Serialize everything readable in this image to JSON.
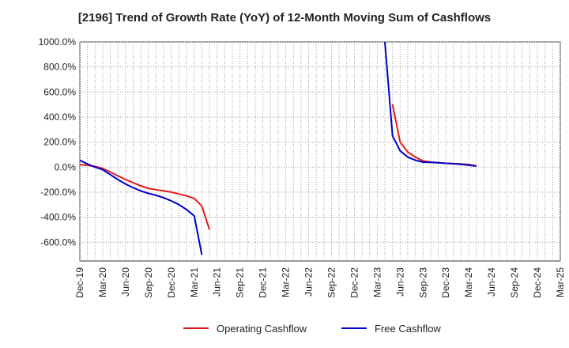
{
  "chart_data": {
    "type": "line",
    "title": "[2196]  Trend of Growth Rate (YoY) of 12-Month Moving Sum of Cashflows",
    "xlabel": "",
    "ylabel": "",
    "ylim": [
      -750,
      1000
    ],
    "grid": true,
    "legend_position": "bottom",
    "y_ticks": [
      {
        "value": 1000,
        "label": "1000.0%"
      },
      {
        "value": 800,
        "label": "800.0%"
      },
      {
        "value": 600,
        "label": "600.0%"
      },
      {
        "value": 400,
        "label": "400.0%"
      },
      {
        "value": 200,
        "label": "200.0%"
      },
      {
        "value": 0,
        "label": "0.0%"
      },
      {
        "value": -200,
        "label": "-200.0%"
      },
      {
        "value": -400,
        "label": "-400.0%"
      },
      {
        "value": -600,
        "label": "-600.0%"
      }
    ],
    "x_ticks": [
      "Dec-19",
      "Mar-20",
      "Jun-20",
      "Sep-20",
      "Dec-20",
      "Mar-21",
      "Jun-21",
      "Sep-21",
      "Dec-21",
      "Mar-22",
      "Jun-22",
      "Sep-22",
      "Dec-22",
      "Mar-23",
      "Jun-23",
      "Sep-23",
      "Dec-23",
      "Mar-24",
      "Jun-24",
      "Sep-24",
      "Dec-24",
      "Mar-25"
    ],
    "months": [
      "2019-12",
      "2020-01",
      "2020-02",
      "2020-03",
      "2020-04",
      "2020-05",
      "2020-06",
      "2020-07",
      "2020-08",
      "2020-09",
      "2020-10",
      "2020-11",
      "2020-12",
      "2021-01",
      "2021-02",
      "2021-03",
      "2021-04",
      "2021-05",
      "2021-06",
      "2021-07",
      "2021-08",
      "2021-09",
      "2021-10",
      "2021-11",
      "2021-12",
      "2022-01",
      "2022-02",
      "2022-03",
      "2022-04",
      "2022-05",
      "2022-06",
      "2022-07",
      "2022-08",
      "2022-09",
      "2022-10",
      "2022-11",
      "2022-12",
      "2023-01",
      "2023-02",
      "2023-03",
      "2023-04",
      "2023-05",
      "2023-06",
      "2023-07",
      "2023-08",
      "2023-09",
      "2023-10",
      "2023-11",
      "2023-12",
      "2024-01",
      "2024-02",
      "2024-03",
      "2024-04",
      "2024-05",
      "2024-06",
      "2024-07",
      "2024-08",
      "2024-09",
      "2024-10",
      "2024-11",
      "2024-12",
      "2025-01",
      "2025-02",
      "2025-03"
    ],
    "series": [
      {
        "name": "Operating Cashflow",
        "color": "#e41a1c",
        "values": [
          20,
          15,
          5,
          -10,
          -40,
          -70,
          -100,
          -125,
          -150,
          -170,
          -180,
          -190,
          -200,
          -215,
          -230,
          -250,
          -310,
          -500,
          null,
          null,
          null,
          null,
          null,
          null,
          null,
          null,
          null,
          null,
          null,
          null,
          null,
          null,
          null,
          null,
          null,
          null,
          null,
          null,
          null,
          null,
          null,
          500,
          200,
          120,
          80,
          50,
          40,
          35,
          30,
          28,
          25,
          20,
          10,
          null,
          null,
          null,
          null,
          null,
          null,
          null,
          null,
          null,
          null,
          null
        ]
      },
      {
        "name": "Free Cashflow",
        "color": "#0000cc",
        "values": [
          55,
          25,
          0,
          -20,
          -60,
          -100,
          -135,
          -165,
          -190,
          -210,
          -225,
          -245,
          -270,
          -300,
          -340,
          -390,
          -700,
          null,
          null,
          null,
          null,
          null,
          null,
          null,
          null,
          null,
          null,
          null,
          null,
          null,
          null,
          null,
          null,
          null,
          null,
          null,
          null,
          null,
          null,
          null,
          1000,
          250,
          130,
          80,
          55,
          40,
          38,
          35,
          30,
          27,
          22,
          15,
          8,
          null,
          null,
          null,
          null,
          null,
          null,
          null,
          null,
          null,
          null,
          null
        ]
      }
    ]
  }
}
